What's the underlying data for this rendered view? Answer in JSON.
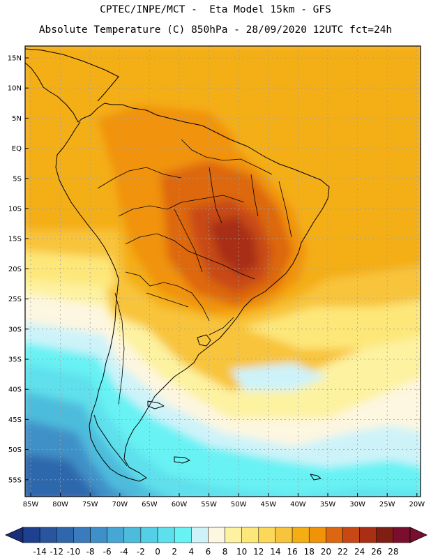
{
  "header": {
    "line1": "CPTEC/INPE/MCT -  Eta Model 15km - GFS",
    "line2": "Absolute Temperature (C) 850hPa - 28/09/2020 12UTC fct=24h"
  },
  "map": {
    "latitude_labels": [
      "15N",
      "10N",
      "5N",
      "EQ",
      "5S",
      "10S",
      "15S",
      "20S",
      "25S",
      "30S",
      "35S",
      "40S",
      "45S",
      "50S",
      "55S"
    ],
    "longitude_labels": [
      "85W",
      "80W",
      "75W",
      "70W",
      "65W",
      "60W",
      "55W",
      "50W",
      "45W",
      "40W",
      "35W",
      "30W",
      "25W",
      "20W"
    ],
    "region": "South America",
    "variable": "Absolute Temperature (C) 850hPa"
  },
  "colorbar": {
    "labels": [
      "-14",
      "-12",
      "-10",
      "-8",
      "-6",
      "-4",
      "-2",
      "0",
      "2",
      "4",
      "6",
      "8",
      "10",
      "12",
      "14",
      "16",
      "18",
      "20",
      "22",
      "24",
      "26",
      "28"
    ],
    "colors": [
      "#1f3f8f",
      "#28559e",
      "#2f67ac",
      "#3a7bbd",
      "#3f90c8",
      "#46a7d4",
      "#4dbcdc",
      "#55cfe6",
      "#5ee0ec",
      "#67f2f4",
      "#cdf3f9",
      "#fdf6e0",
      "#fdf2a0",
      "#fde779",
      "#fbd75a",
      "#f8c43b",
      "#f4ae13",
      "#f19308",
      "#dd6710",
      "#c84815",
      "#a82f13",
      "#7f1e13",
      "#7a0e2e"
    ],
    "under_color": "#1a2f7a",
    "over_color": "#7a0e2e"
  }
}
